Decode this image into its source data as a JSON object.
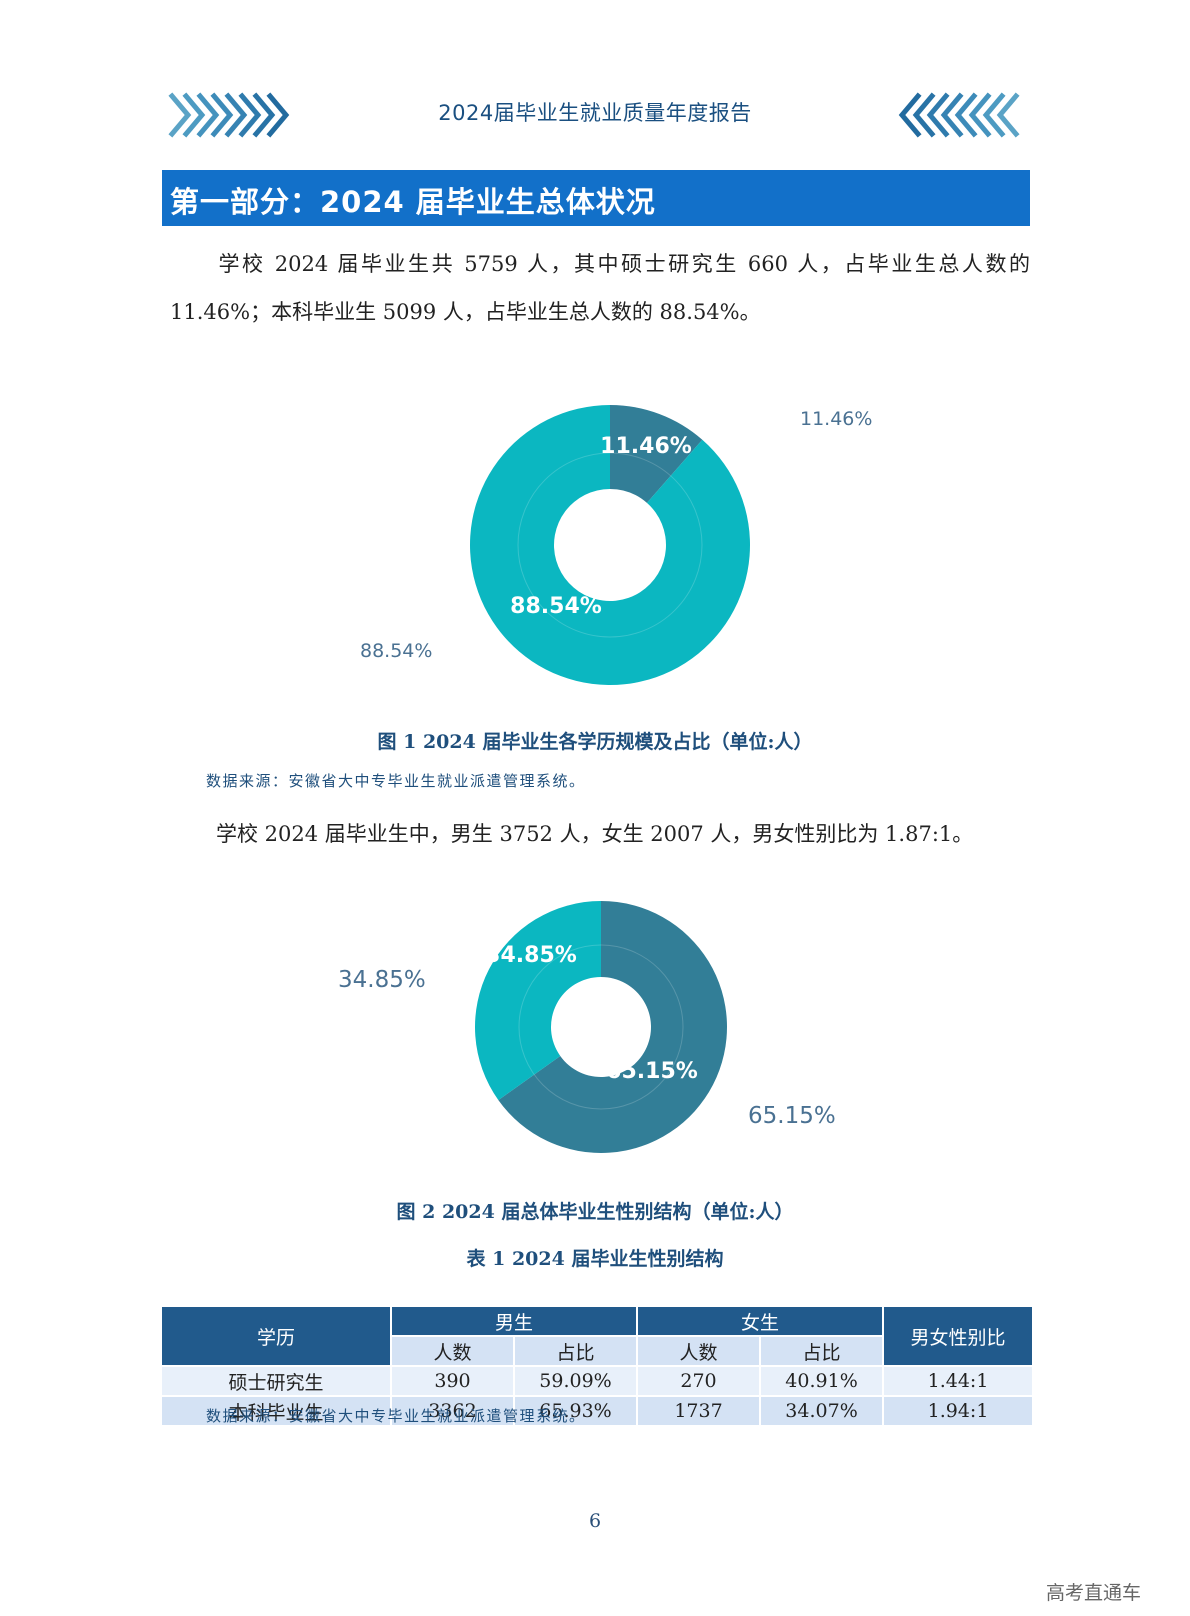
{
  "header": {
    "title": "2024届毕业生就业质量年度报告"
  },
  "section": {
    "title": "第一部分：2024 届毕业生总体状况"
  },
  "paragraphs": {
    "p1": "学校 2024 届毕业生共 5759 人，其中硕士研究生 660 人，占毕业生总人数的 11.46%；本科毕业生 5099 人，占毕业生总人数的 88.54%。",
    "p2": "学校 2024 届毕业生中，男生 3752 人，女生 2007 人，男女性别比为 1.87:1。"
  },
  "figure1": {
    "caption": "图 1 2024 届毕业生各学历规模及占比（单位:人）",
    "source": "数据来源：安徽省大中专毕业生就业派遣管理系统。",
    "outside_labels": [
      "11.46%",
      "88.54%"
    ],
    "inner_labels": [
      "11.46%",
      "88.54%"
    ]
  },
  "figure2": {
    "caption": "图 2  2024 届总体毕业生性别结构（单位:人）",
    "outside_labels": [
      "34.85%",
      "65.15%"
    ],
    "inner_labels": [
      "34.85%",
      "65.15%"
    ]
  },
  "chart_data": [
    {
      "type": "pie",
      "title": "",
      "series": [
        {
          "values": [
            11.46,
            88.54
          ],
          "colors": [
            "#327e97",
            "#0bb7c1"
          ]
        }
      ],
      "labels": [
        "11.46%",
        "88.54%"
      ]
    },
    {
      "type": "pie",
      "title": "",
      "series": [
        {
          "values": [
            65.15,
            34.85
          ],
          "colors": [
            "#327e97",
            "#0bb7c1"
          ]
        }
      ],
      "labels": [
        "65.15%",
        "34.85%"
      ]
    }
  ],
  "table": {
    "title": "表 1 2024 届毕业生性别结构",
    "headers": {
      "education": "学历",
      "male": "男生",
      "female": "女生",
      "ratio": "男女性别比",
      "count": "人数",
      "share": "占比"
    },
    "rows": [
      {
        "education": "硕士研究生",
        "male_count": "390",
        "male_share": "59.09%",
        "female_count": "270",
        "female_share": "40.91%",
        "ratio": "1.44:1"
      },
      {
        "education": "本科毕业生",
        "male_count": "3362",
        "male_share": "65.93%",
        "female_count": "1737",
        "female_share": "34.07%",
        "ratio": "1.94:1"
      }
    ],
    "source": "数据来源：安徽省大中专毕业生就业派遣管理系统。"
  },
  "page_number": "6",
  "watermark": "高考直通车",
  "colors": {
    "dark_teal": "#327e97",
    "cyan": "#0bb7c1",
    "banner_blue": "#1270c9",
    "header_text": "#1a4f80"
  }
}
